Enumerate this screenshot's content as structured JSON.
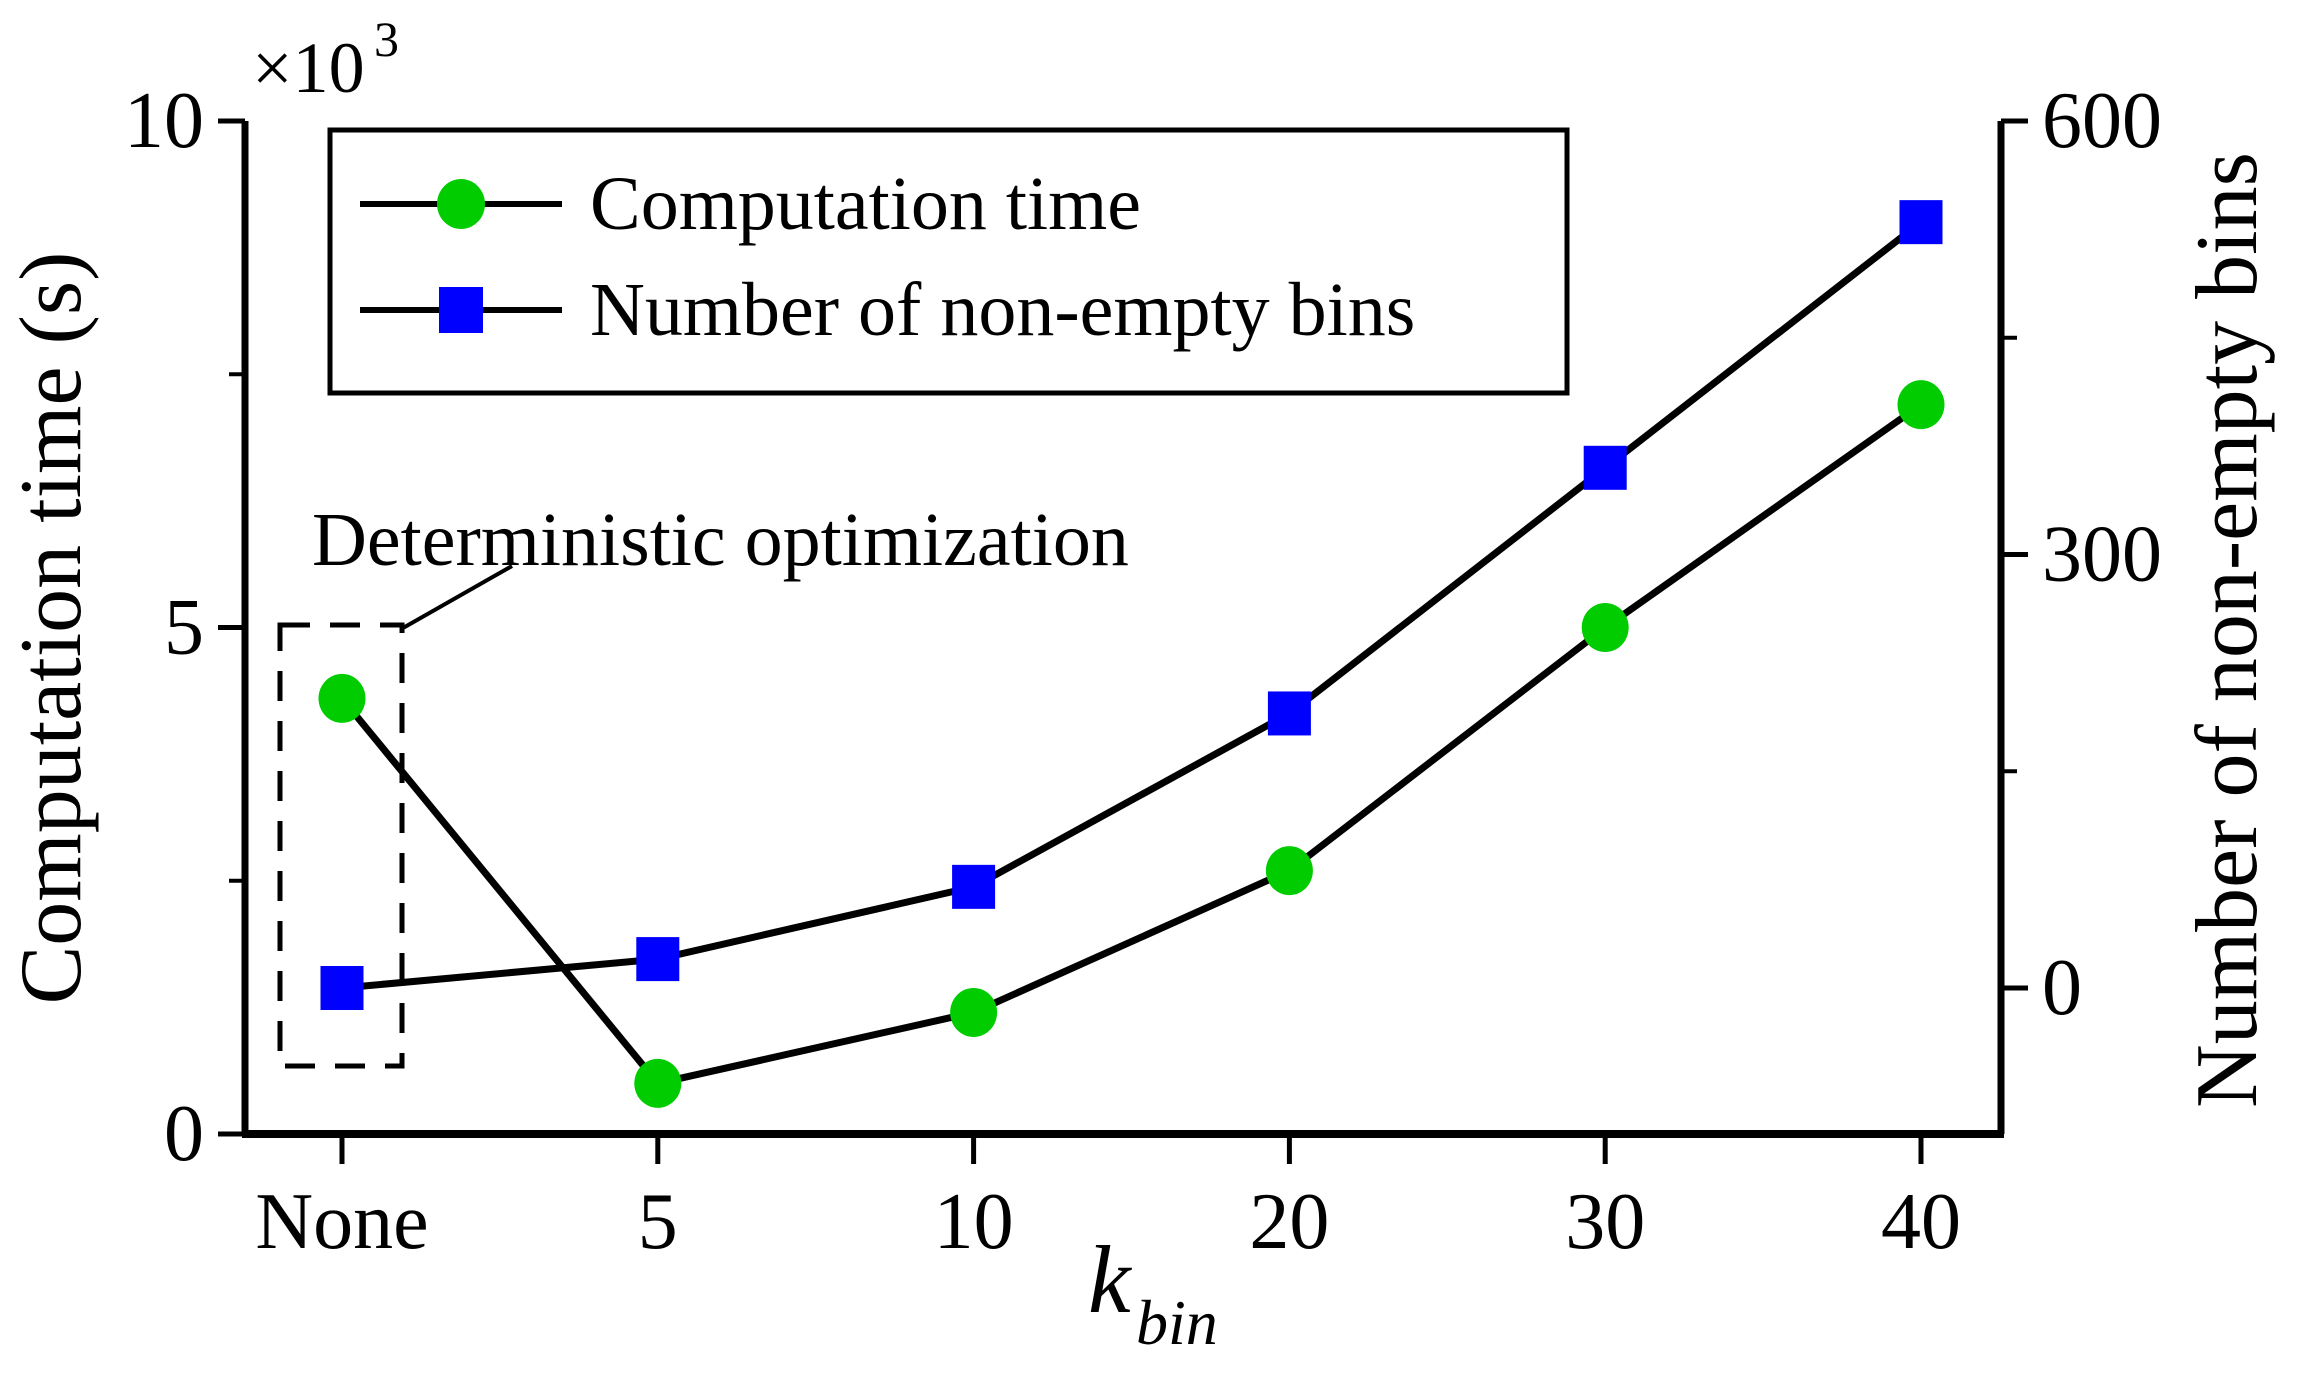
{
  "chart_data": {
    "type": "line",
    "title": "",
    "categories": [
      "None",
      "5",
      "10",
      "20",
      "30",
      "40"
    ],
    "xlabel_main": "k",
    "xlabel_sub": "bin",
    "left_axis": {
      "label": "Computation time (s)",
      "multiplier_base": "×10",
      "multiplier_exp": "3",
      "ticks": [
        0,
        5,
        10
      ],
      "minor_ticks": [
        2.5,
        7.5
      ],
      "ylim": [
        0,
        10
      ]
    },
    "right_axis": {
      "label": "Number of non-empty bins",
      "ticks": [
        0,
        300,
        600
      ],
      "minor_ticks": [
        150,
        450
      ],
      "ylim_at_ticks": [
        0,
        600
      ]
    },
    "series": [
      {
        "name": "Computation time",
        "axis": "left",
        "marker": "circle",
        "color": "#00cc00",
        "line_color": "#000000",
        "values": [
          4.3,
          0.5,
          1.2,
          2.6,
          5.0,
          7.2
        ],
        "units": "x10^3 s"
      },
      {
        "name": "Number of non-empty bins",
        "axis": "right",
        "marker": "square",
        "color": "#0000ff",
        "line_color": "#000000",
        "values": [
          0,
          20,
          70,
          190,
          360,
          530
        ],
        "units": "bins"
      }
    ],
    "legend_position": "top-left-inside",
    "grid": "off",
    "annotation": {
      "text": "Deterministic optimization",
      "target_category": "None",
      "style": "dashed-box-with-leader-line"
    }
  }
}
